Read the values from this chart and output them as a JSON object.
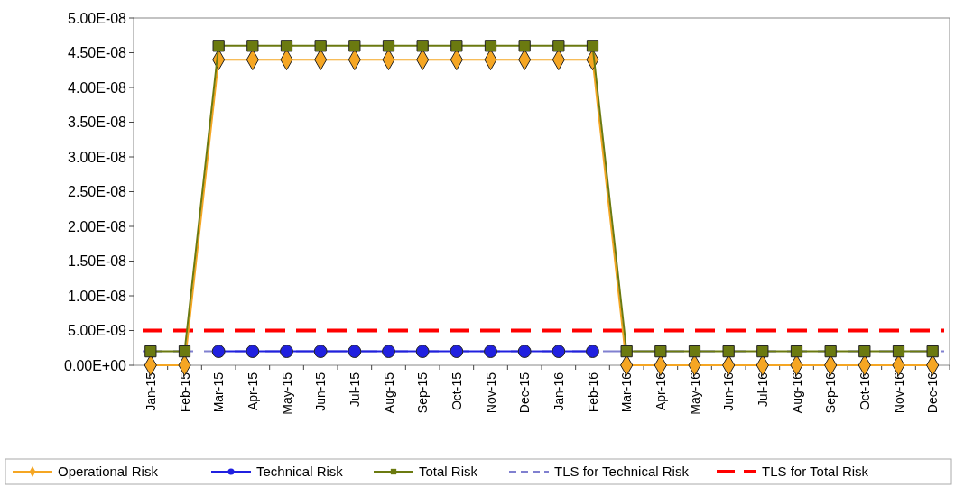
{
  "chart_data": {
    "type": "line",
    "categories": [
      "Jan-15",
      "Feb-15",
      "Mar-15",
      "Apr-15",
      "May-15",
      "Jun-15",
      "Jul-15",
      "Aug-15",
      "Sep-15",
      "Oct-15",
      "Nov-15",
      "Dec-15",
      "Jan-16",
      "Feb-16",
      "Mar-16",
      "Apr-16",
      "May-16",
      "Jun-16",
      "Jul-16",
      "Aug-16",
      "Sep-16",
      "Oct-16",
      "Nov-16",
      "Dec-16"
    ],
    "series": [
      {
        "name": "Operational Risk",
        "color": "#f5a623",
        "marker": "diamond",
        "values": [
          0,
          0,
          4.4e-08,
          4.4e-08,
          4.4e-08,
          4.4e-08,
          4.4e-08,
          4.4e-08,
          4.4e-08,
          4.4e-08,
          4.4e-08,
          4.4e-08,
          4.4e-08,
          4.4e-08,
          0,
          0,
          0,
          0,
          0,
          0,
          0,
          0,
          0,
          0
        ]
      },
      {
        "name": "Technical Risk",
        "color": "#2020e0",
        "marker": "circle",
        "values": [
          null,
          null,
          2e-09,
          2e-09,
          2e-09,
          2e-09,
          2e-09,
          2e-09,
          2e-09,
          2e-09,
          2e-09,
          2e-09,
          2e-09,
          2e-09,
          null,
          null,
          null,
          null,
          null,
          null,
          null,
          null,
          null,
          null
        ]
      },
      {
        "name": "Total Risk",
        "color": "#6b7a10",
        "marker": "square",
        "values": [
          2e-09,
          2e-09,
          4.6e-08,
          4.6e-08,
          4.6e-08,
          4.6e-08,
          4.6e-08,
          4.6e-08,
          4.6e-08,
          4.6e-08,
          4.6e-08,
          4.6e-08,
          4.6e-08,
          4.6e-08,
          2e-09,
          2e-09,
          2e-09,
          2e-09,
          2e-09,
          2e-09,
          2e-09,
          2e-09,
          2e-09,
          2e-09
        ]
      }
    ],
    "ref_lines": [
      {
        "axis": "y",
        "value": 2e-09,
        "label": "TLS for Technical Risk",
        "color": "#8080d0",
        "line_style": "dashed"
      },
      {
        "axis": "y",
        "value": 5e-09,
        "label": "TLS for Total Risk",
        "color": "#ff0000",
        "line_style": "dashed"
      }
    ],
    "ylim": [
      0,
      5e-08
    ],
    "yticks": [
      {
        "value": 0,
        "label": "0.00E+00"
      },
      {
        "value": 5e-09,
        "label": "5.00E-09"
      },
      {
        "value": 1e-08,
        "label": "1.00E-08"
      },
      {
        "value": 1.5e-08,
        "label": "1.50E-08"
      },
      {
        "value": 2e-08,
        "label": "2.00E-08"
      },
      {
        "value": 2.5e-08,
        "label": "2.50E-08"
      },
      {
        "value": 3e-08,
        "label": "3.00E-08"
      },
      {
        "value": 3.5e-08,
        "label": "3.50E-08"
      },
      {
        "value": 4e-08,
        "label": "4.00E-08"
      },
      {
        "value": 4.5e-08,
        "label": "4.50E-08"
      },
      {
        "value": 5e-08,
        "label": "5.00E-08"
      }
    ],
    "grid": false,
    "legend": "bottom"
  }
}
